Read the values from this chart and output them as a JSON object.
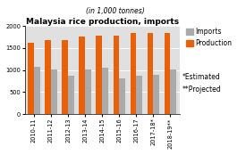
{
  "title": "Malaysia rice production, imports",
  "subtitle": "(in 1,000 tonnes)",
  "categories": [
    "2010-11",
    "2011-12",
    "2012-13",
    "2013-14",
    "2014-15",
    "2015-16",
    "2016-17",
    "2017-18*",
    "2018-19**"
  ],
  "imports": [
    1080,
    1010,
    870,
    1020,
    1060,
    810,
    870,
    890,
    1010
  ],
  "production": [
    1630,
    1680,
    1680,
    1760,
    1790,
    1790,
    1840,
    1840,
    1840
  ],
  "imports_color": "#aaaaaa",
  "production_color": "#E8600A",
  "bg_color": "#E0E0E0",
  "ylim": [
    0,
    2000
  ],
  "yticks": [
    0,
    500,
    1000,
    1500,
    2000
  ],
  "legend_imports": "Imports",
  "legend_production": "Production",
  "note1": "*Estimated",
  "note2": "**Projected",
  "title_fontsize": 6.5,
  "subtitle_fontsize": 5.5,
  "tick_fontsize": 4.8,
  "legend_fontsize": 5.5
}
